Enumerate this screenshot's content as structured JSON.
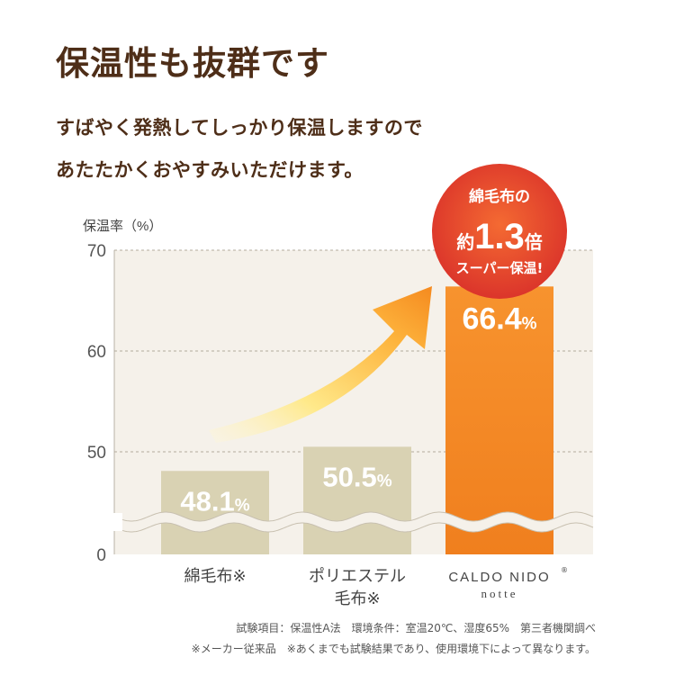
{
  "headline": "保温性も抜群です",
  "lead": {
    "line1": "すばやく発熱してしっかり保温しますので",
    "line2": "あたたかくおやすみいただけます。"
  },
  "chart_data": {
    "type": "bar",
    "ylabel": "保温率（%）",
    "yticks": [
      0,
      50,
      60,
      70
    ],
    "ylim": [
      0,
      70
    ],
    "broken_axis": true,
    "categories": [
      {
        "line1": "綿毛布※",
        "line2": ""
      },
      {
        "line1": "ポリエステル",
        "line2": "毛布※"
      },
      {
        "line1": "CALDO NIDO",
        "line2": "notte",
        "trademark": "®"
      }
    ],
    "values": [
      48.1,
      50.5,
      66.4
    ],
    "value_labels": [
      "48.1",
      "50.5",
      "66.4"
    ],
    "value_unit": "%",
    "bar_colors": [
      "#d9d2b3",
      "#d9d2b3",
      "#f28c28"
    ],
    "grid": true,
    "plot_background": "#f5f1ea",
    "badge": {
      "line1": "綿毛布の",
      "prefix": "約",
      "big": "1.3",
      "suffix": "倍",
      "line3": "スーパー保温!",
      "color": "#e5432a"
    }
  },
  "footnotes": {
    "line1": "試験項目：保温性A法　環境条件：室温20℃、湿度65%　第三者機関調べ",
    "line2": "※メーカー従来品　※あくまでも試験結果であり、使用環境下によって異なります。"
  }
}
